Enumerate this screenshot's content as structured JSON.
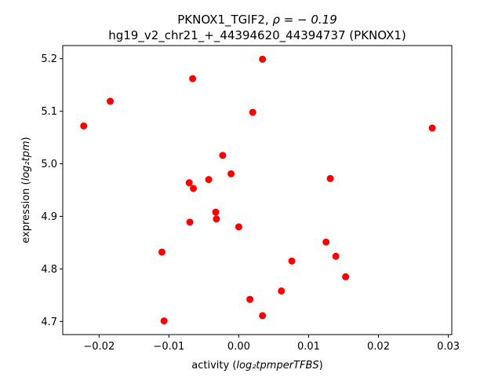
{
  "chart_data": {
    "type": "scatter",
    "title_line1_prefix": "PKNOX1_TGIF2, ",
    "title_line1_rho": "ρ = − 0.19",
    "title_line2": "hg19_v2_chr21_+_44394620_44394737 (PKNOX1)",
    "xlabel_prefix": "activity (",
    "xlabel_math": "log₂tpmperTFBS",
    "xlabel_suffix": ")",
    "ylabel_prefix": "expression (",
    "ylabel_math": "log₂tpm",
    "ylabel_suffix": ")",
    "xlim": [
      -0.0252,
      0.0305
    ],
    "ylim": [
      4.675,
      5.225
    ],
    "xticks": [
      -0.02,
      -0.01,
      0.0,
      0.01,
      0.02,
      0.03
    ],
    "xtick_labels": [
      "−0.02",
      "−0.01",
      "0.00",
      "0.01",
      "0.02",
      "0.03"
    ],
    "yticks": [
      4.7,
      4.8,
      4.9,
      5.0,
      5.1,
      5.2
    ],
    "ytick_labels": [
      "4.7",
      "4.8",
      "4.9",
      "5.0",
      "5.1",
      "5.2"
    ],
    "grid": false,
    "marker_color": "#ff0000",
    "points": [
      {
        "x": -0.0222,
        "y": 5.072
      },
      {
        "x": -0.0184,
        "y": 5.119
      },
      {
        "x": -0.0066,
        "y": 5.162
      },
      {
        "x": 0.0034,
        "y": 5.199
      },
      {
        "x": 0.002,
        "y": 5.098
      },
      {
        "x": 0.0277,
        "y": 5.068
      },
      {
        "x": -0.0023,
        "y": 5.016
      },
      {
        "x": -0.0011,
        "y": 4.981
      },
      {
        "x": -0.0043,
        "y": 4.97
      },
      {
        "x": -0.0071,
        "y": 4.964
      },
      {
        "x": -0.0065,
        "y": 4.953
      },
      {
        "x": 0.0131,
        "y": 4.972
      },
      {
        "x": -0.0033,
        "y": 4.908
      },
      {
        "x": -0.0032,
        "y": 4.895
      },
      {
        "x": -0.007,
        "y": 4.889
      },
      {
        "x": 0.0,
        "y": 4.88
      },
      {
        "x": 0.0125,
        "y": 4.851
      },
      {
        "x": -0.011,
        "y": 4.832
      },
      {
        "x": 0.0139,
        "y": 4.824
      },
      {
        "x": 0.0076,
        "y": 4.815
      },
      {
        "x": 0.0153,
        "y": 4.785
      },
      {
        "x": 0.0061,
        "y": 4.758
      },
      {
        "x": 0.0016,
        "y": 4.742
      },
      {
        "x": 0.0034,
        "y": 4.711
      },
      {
        "x": -0.0107,
        "y": 4.701
      }
    ]
  }
}
